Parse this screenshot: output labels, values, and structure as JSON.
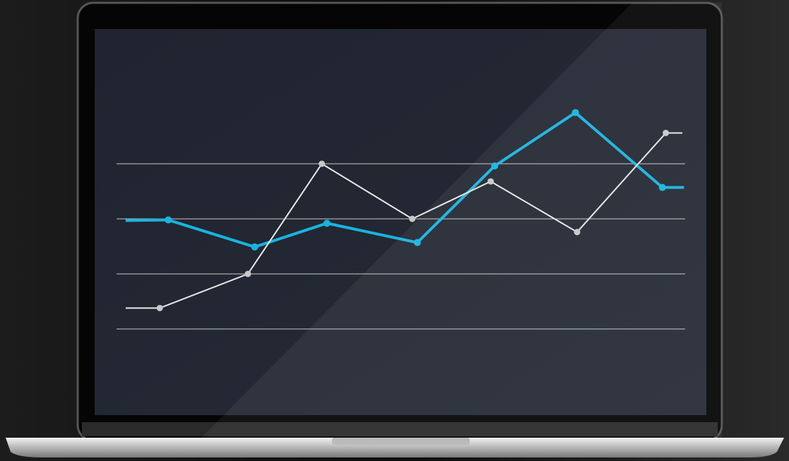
{
  "chart_data": {
    "type": "line",
    "xlim": [
      0,
      10
    ],
    "ylim": [
      -1.5,
      5.5
    ],
    "yticks": [
      0,
      1,
      2,
      3
    ],
    "grid": true,
    "series": [
      {
        "color": "#1ab3e0",
        "x": [
          0.16,
          0.91,
          2.43,
          3.7,
          5.29,
          6.65,
          8.07,
          9.6,
          9.98
        ],
        "values": [
          1.97,
          1.98,
          1.49,
          1.92,
          1.57,
          2.96,
          3.93,
          2.57,
          2.57
        ]
      },
      {
        "color": "#e8e8e8",
        "x": [
          0.16,
          0.76,
          2.31,
          3.61,
          5.2,
          6.58,
          8.1,
          9.66,
          9.95
        ],
        "values": [
          0.38,
          0.38,
          1.0,
          3.0,
          2.0,
          2.68,
          1.76,
          3.56,
          3.56
        ]
      }
    ]
  }
}
